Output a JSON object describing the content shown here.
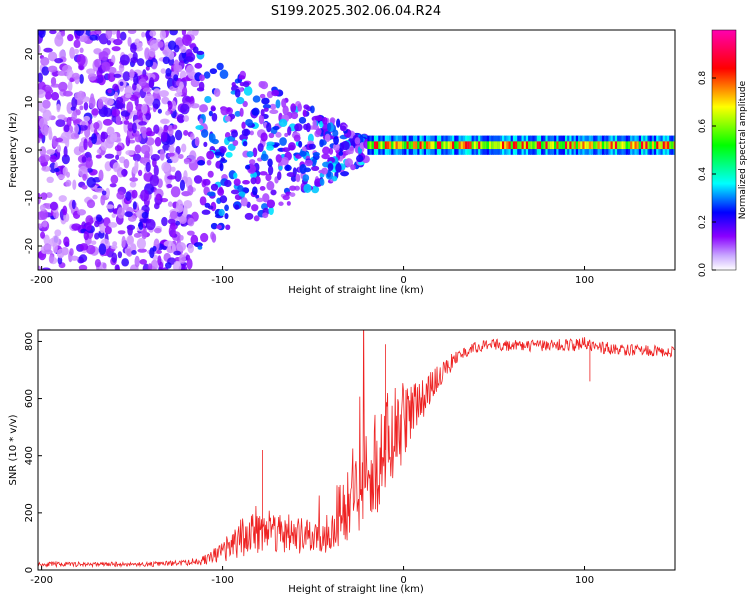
{
  "chart_data": [
    {
      "type": "heatmap",
      "title": "S199.2025.302.06.04.R24",
      "xlabel": "Height of straight line (km)",
      "ylabel": "Frequency (Hz)",
      "xlim": [
        -202,
        150
      ],
      "ylim": [
        -25,
        25
      ],
      "xticks": [
        -200,
        -100,
        0,
        100
      ],
      "yticks": [
        20,
        10,
        0,
        -10,
        -20
      ],
      "colorbar": {
        "label": "Normalized spectral amplitude",
        "range": [
          0,
          1
        ],
        "ticks": [
          "0.0",
          "0.2",
          "0.4",
          "0.6",
          "0.8"
        ],
        "colormap": [
          "#ffffff",
          "#8a00ff",
          "#0000ff",
          "#00ffff",
          "#00ff00",
          "#ffff00",
          "#ff0000",
          "#ff00b0"
        ]
      },
      "description_regions": [
        {
          "x_from": -202,
          "x_to": -115,
          "pattern": "broadband noise",
          "amp": 0.25
        },
        {
          "x_from": -115,
          "x_to": -20,
          "pattern": "transitional clustered energy",
          "amp": 0.45
        },
        {
          "x_from": -20,
          "x_to": 150,
          "pattern": "narrow band near 0-2 Hz",
          "center_hz": 1,
          "amp": 0.9
        }
      ]
    },
    {
      "type": "line",
      "xlabel": "Height of straight line (km)",
      "ylabel": "SNR (10 * v/v)",
      "xlim": [
        -202,
        150
      ],
      "ylim": [
        0,
        840
      ],
      "xticks": [
        -200,
        -100,
        0,
        100
      ],
      "yticks": [
        0,
        200,
        400,
        600,
        800
      ],
      "color": "#ee2222",
      "series": [
        {
          "name": "SNR",
          "x": [
            -202,
            -180,
            -160,
            -140,
            -120,
            -110,
            -100,
            -90,
            -80,
            -70,
            -60,
            -50,
            -40,
            -30,
            -20,
            -10,
            0,
            10,
            20,
            30,
            40,
            50,
            60,
            80,
            100,
            120,
            150
          ],
          "y": [
            20,
            20,
            20,
            20,
            25,
            35,
            60,
            110,
            150,
            140,
            120,
            110,
            150,
            250,
            350,
            420,
            520,
            600,
            680,
            750,
            780,
            790,
            785,
            785,
            790,
            770,
            765
          ],
          "noise_amplitude": [
            8,
            8,
            8,
            8,
            10,
            20,
            40,
            70,
            90,
            80,
            70,
            60,
            100,
            150,
            180,
            200,
            140,
            80,
            40,
            25,
            20,
            20,
            20,
            20,
            25,
            20,
            20
          ]
        }
      ],
      "annotations": [
        {
          "x": -78,
          "y": 420,
          "text": "spike"
        },
        {
          "x": -10,
          "y": 790,
          "text": "spike"
        },
        {
          "x": 103,
          "y": 660,
          "text": "dip"
        }
      ]
    }
  ]
}
